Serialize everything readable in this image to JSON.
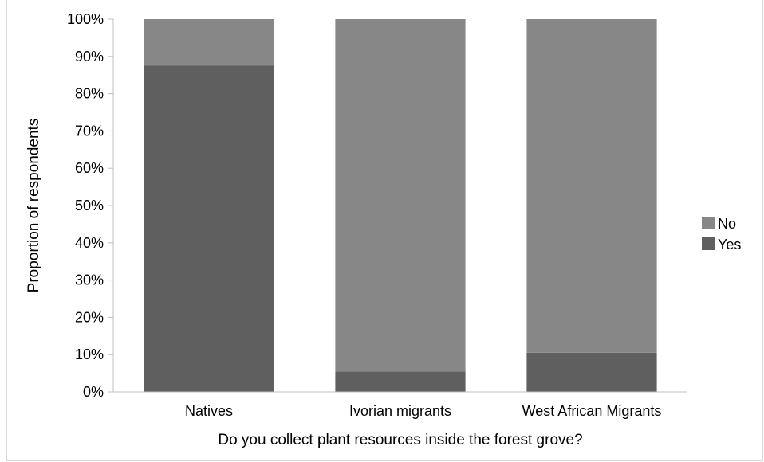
{
  "chart_data": {
    "type": "bar",
    "stacked": true,
    "categories": [
      "Natives",
      "Ivorian migrants",
      "West African Migrants"
    ],
    "series": [
      {
        "name": "Yes",
        "values": [
          87.5,
          5.5,
          10.5
        ],
        "color": "#5f5f5f"
      },
      {
        "name": "No",
        "values": [
          12.5,
          94.5,
          89.5
        ],
        "color": "#878787"
      }
    ],
    "title": "",
    "xlabel": "Do you collect plant resources inside the forest grove?",
    "ylabel": "Proportion of respondents",
    "ylim": [
      0,
      100
    ],
    "yticks": [
      "0%",
      "10%",
      "20%",
      "30%",
      "40%",
      "50%",
      "60%",
      "70%",
      "80%",
      "90%",
      "100%"
    ],
    "grid": false,
    "legend": {
      "position": "right",
      "entries": [
        "No",
        "Yes"
      ]
    }
  }
}
